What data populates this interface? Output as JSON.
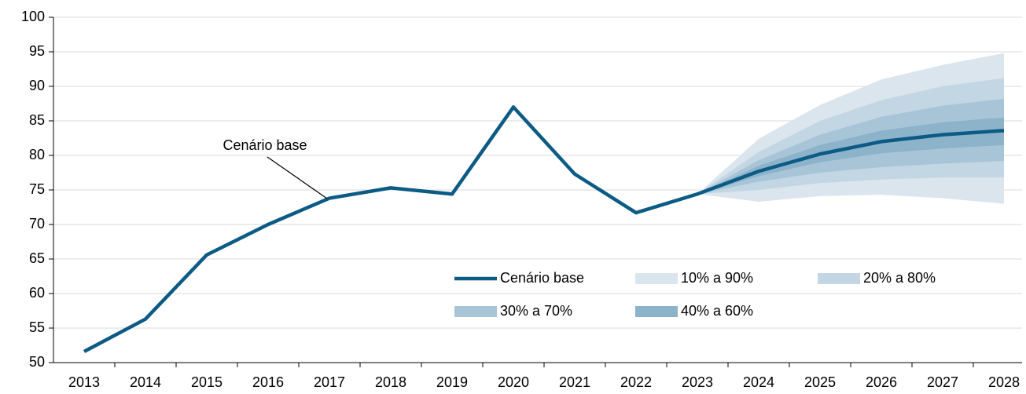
{
  "chart_data": {
    "type": "fan",
    "categories": [
      "2013",
      "2014",
      "2015",
      "2016",
      "2017",
      "2018",
      "2019",
      "2020",
      "2021",
      "2022",
      "2023",
      "2024",
      "2025",
      "2026",
      "2027",
      "2028"
    ],
    "ylim": [
      50,
      100
    ],
    "yticks": [
      50,
      55,
      60,
      65,
      70,
      75,
      80,
      85,
      90,
      95,
      100
    ],
    "annotation": "Cenário base",
    "series": [
      {
        "name": "Cenário base",
        "color": "#0b5b84",
        "values": [
          51.6,
          56.3,
          65.6,
          70.0,
          73.8,
          75.3,
          74.4,
          87.0,
          77.3,
          71.7,
          74.4,
          77.7,
          80.2,
          82.0,
          83.0,
          83.6
        ]
      }
    ],
    "bands": [
      {
        "name": "10% a 90%",
        "color": "#dae5ee",
        "lower": [
          null,
          null,
          null,
          null,
          null,
          null,
          null,
          null,
          null,
          null,
          74.4,
          73.3,
          74.1,
          74.3,
          73.8,
          73.0
        ],
        "upper": [
          null,
          null,
          null,
          null,
          null,
          null,
          null,
          null,
          null,
          null,
          74.4,
          82.4,
          87.3,
          91.0,
          93.1,
          94.8
        ]
      },
      {
        "name": "20% a 80%",
        "color": "#c3d6e3",
        "lower": [
          null,
          null,
          null,
          null,
          null,
          null,
          null,
          null,
          null,
          null,
          74.4,
          75.0,
          76.0,
          76.5,
          76.8,
          76.8
        ],
        "upper": [
          null,
          null,
          null,
          null,
          null,
          null,
          null,
          null,
          null,
          null,
          74.4,
          80.5,
          85.0,
          88.0,
          90.0,
          91.2
        ]
      },
      {
        "name": "30% a 70%",
        "color": "#a8c5d8",
        "lower": [
          null,
          null,
          null,
          null,
          null,
          null,
          null,
          null,
          null,
          null,
          74.4,
          76.2,
          77.5,
          78.3,
          78.8,
          79.2
        ],
        "upper": [
          null,
          null,
          null,
          null,
          null,
          null,
          null,
          null,
          null,
          null,
          74.4,
          79.3,
          83.0,
          85.6,
          87.2,
          88.2
        ]
      },
      {
        "name": "40% a 60%",
        "color": "#8db3cb",
        "lower": [
          null,
          null,
          null,
          null,
          null,
          null,
          null,
          null,
          null,
          null,
          74.4,
          77.0,
          79.0,
          80.3,
          81.0,
          81.5
        ],
        "upper": [
          null,
          null,
          null,
          null,
          null,
          null,
          null,
          null,
          null,
          null,
          74.4,
          78.5,
          81.5,
          83.6,
          84.8,
          85.5
        ]
      }
    ]
  }
}
